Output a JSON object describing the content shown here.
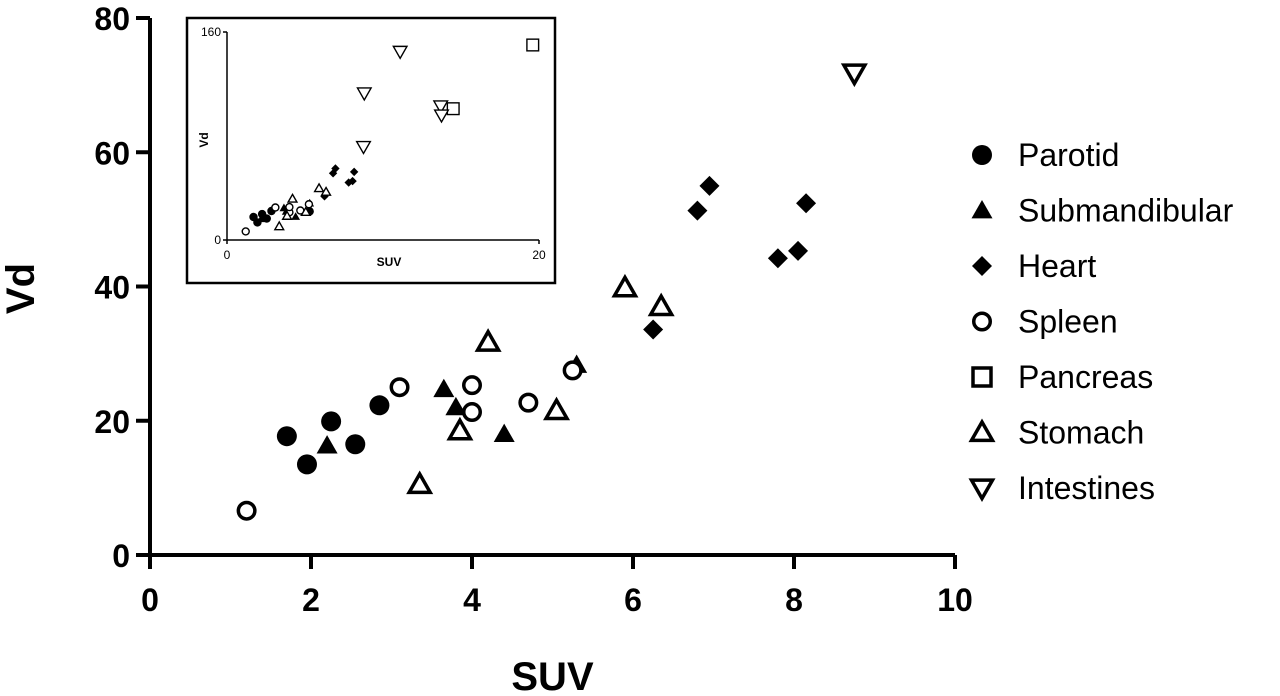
{
  "chart_data": [
    {
      "type": "scatter",
      "xlabel": "SUV",
      "ylabel": "Vd",
      "xlim": [
        0,
        10
      ],
      "ylim": [
        0,
        80
      ],
      "xticks": [
        "0",
        "2",
        "4",
        "6",
        "8",
        "10"
      ],
      "yticks": [
        "0",
        "20",
        "40",
        "60",
        "80"
      ],
      "grid": false,
      "legend_position": "right",
      "series": [
        {
          "name": "Parotid",
          "marker": "circle-filled",
          "color": "#000000",
          "points": [
            [
              1.7,
              17.7
            ],
            [
              1.95,
              13.5
            ],
            [
              2.25,
              19.9
            ],
            [
              2.55,
              16.5
            ],
            [
              2.85,
              22.3
            ]
          ]
        },
        {
          "name": "Submandibular",
          "marker": "triangle-filled",
          "color": "#000000",
          "points": [
            [
              2.2,
              16.3
            ],
            [
              3.65,
              24.7
            ],
            [
              3.8,
              22.0
            ],
            [
              4.4,
              18.0
            ],
            [
              5.3,
              28.3
            ]
          ]
        },
        {
          "name": "Heart",
          "marker": "diamond-filled",
          "color": "#000000",
          "points": [
            [
              6.25,
              33.6
            ],
            [
              6.8,
              51.3
            ],
            [
              6.95,
              55.0
            ],
            [
              7.8,
              44.2
            ],
            [
              8.05,
              45.3
            ],
            [
              8.15,
              52.4
            ]
          ]
        },
        {
          "name": "Spleen",
          "marker": "circle-open",
          "color": "#000000",
          "points": [
            [
              1.2,
              6.6
            ],
            [
              3.1,
              25.0
            ],
            [
              4.0,
              21.3
            ],
            [
              4.0,
              25.3
            ],
            [
              4.7,
              22.7
            ],
            [
              5.25,
              27.5
            ]
          ]
        },
        {
          "name": "Pancreas",
          "marker": "square-open",
          "color": "#000000",
          "points": []
        },
        {
          "name": "Stomach",
          "marker": "triangle-open",
          "color": "#000000",
          "points": [
            [
              3.35,
              10.5
            ],
            [
              3.85,
              18.5
            ],
            [
              4.2,
              31.7
            ],
            [
              5.05,
              21.5
            ],
            [
              5.9,
              39.8
            ],
            [
              6.35,
              37.0
            ]
          ]
        },
        {
          "name": "Intestines",
          "marker": "triangle-down-open",
          "color": "#000000",
          "points": [
            [
              8.75,
              71.8
            ]
          ]
        }
      ]
    },
    {
      "type": "scatter",
      "xlabel": "SUV",
      "ylabel": "Vd",
      "xlim": [
        0,
        20
      ],
      "ylim": [
        0,
        160
      ],
      "xticks": [
        "0",
        "20"
      ],
      "yticks": [
        "0",
        "160"
      ],
      "grid": false,
      "series": [
        {
          "name": "Parotid",
          "marker": "circle-filled",
          "points": [
            [
              1.7,
              17.7
            ],
            [
              1.95,
              13.5
            ],
            [
              2.25,
              19.9
            ],
            [
              2.55,
              16.5
            ],
            [
              2.85,
              22.3
            ],
            [
              5.3,
              22.0
            ]
          ]
        },
        {
          "name": "Submandibular",
          "marker": "triangle-filled",
          "points": [
            [
              2.2,
              16.3
            ],
            [
              3.65,
              24.7
            ],
            [
              3.8,
              22.0
            ],
            [
              4.4,
              18.0
            ],
            [
              5.3,
              28.3
            ]
          ]
        },
        {
          "name": "Heart",
          "marker": "diamond-filled",
          "points": [
            [
              6.25,
              33.6
            ],
            [
              6.8,
              51.3
            ],
            [
              6.95,
              55.0
            ],
            [
              7.8,
              44.2
            ],
            [
              8.05,
              45.3
            ],
            [
              8.15,
              52.4
            ]
          ]
        },
        {
          "name": "Spleen",
          "marker": "circle-open",
          "points": [
            [
              1.2,
              6.6
            ],
            [
              3.1,
              25.0
            ],
            [
              4.0,
              21.3
            ],
            [
              4.0,
              25.3
            ],
            [
              4.7,
              22.7
            ],
            [
              5.25,
              27.5
            ]
          ]
        },
        {
          "name": "Pancreas",
          "marker": "square-open",
          "points": [
            [
              14.5,
              101.0
            ],
            [
              19.6,
              150.0
            ]
          ]
        },
        {
          "name": "Stomach",
          "marker": "triangle-open",
          "points": [
            [
              3.35,
              10.5
            ],
            [
              3.85,
              18.5
            ],
            [
              4.2,
              31.7
            ],
            [
              5.05,
              21.5
            ],
            [
              5.9,
              39.8
            ],
            [
              6.35,
              37.0
            ]
          ]
        },
        {
          "name": "Intestines",
          "marker": "triangle-down-open",
          "points": [
            [
              8.75,
              71.8
            ],
            [
              8.8,
              113.0
            ],
            [
              11.1,
              145.0
            ],
            [
              13.7,
              103.0
            ],
            [
              13.75,
              96.0
            ]
          ]
        }
      ]
    }
  ]
}
